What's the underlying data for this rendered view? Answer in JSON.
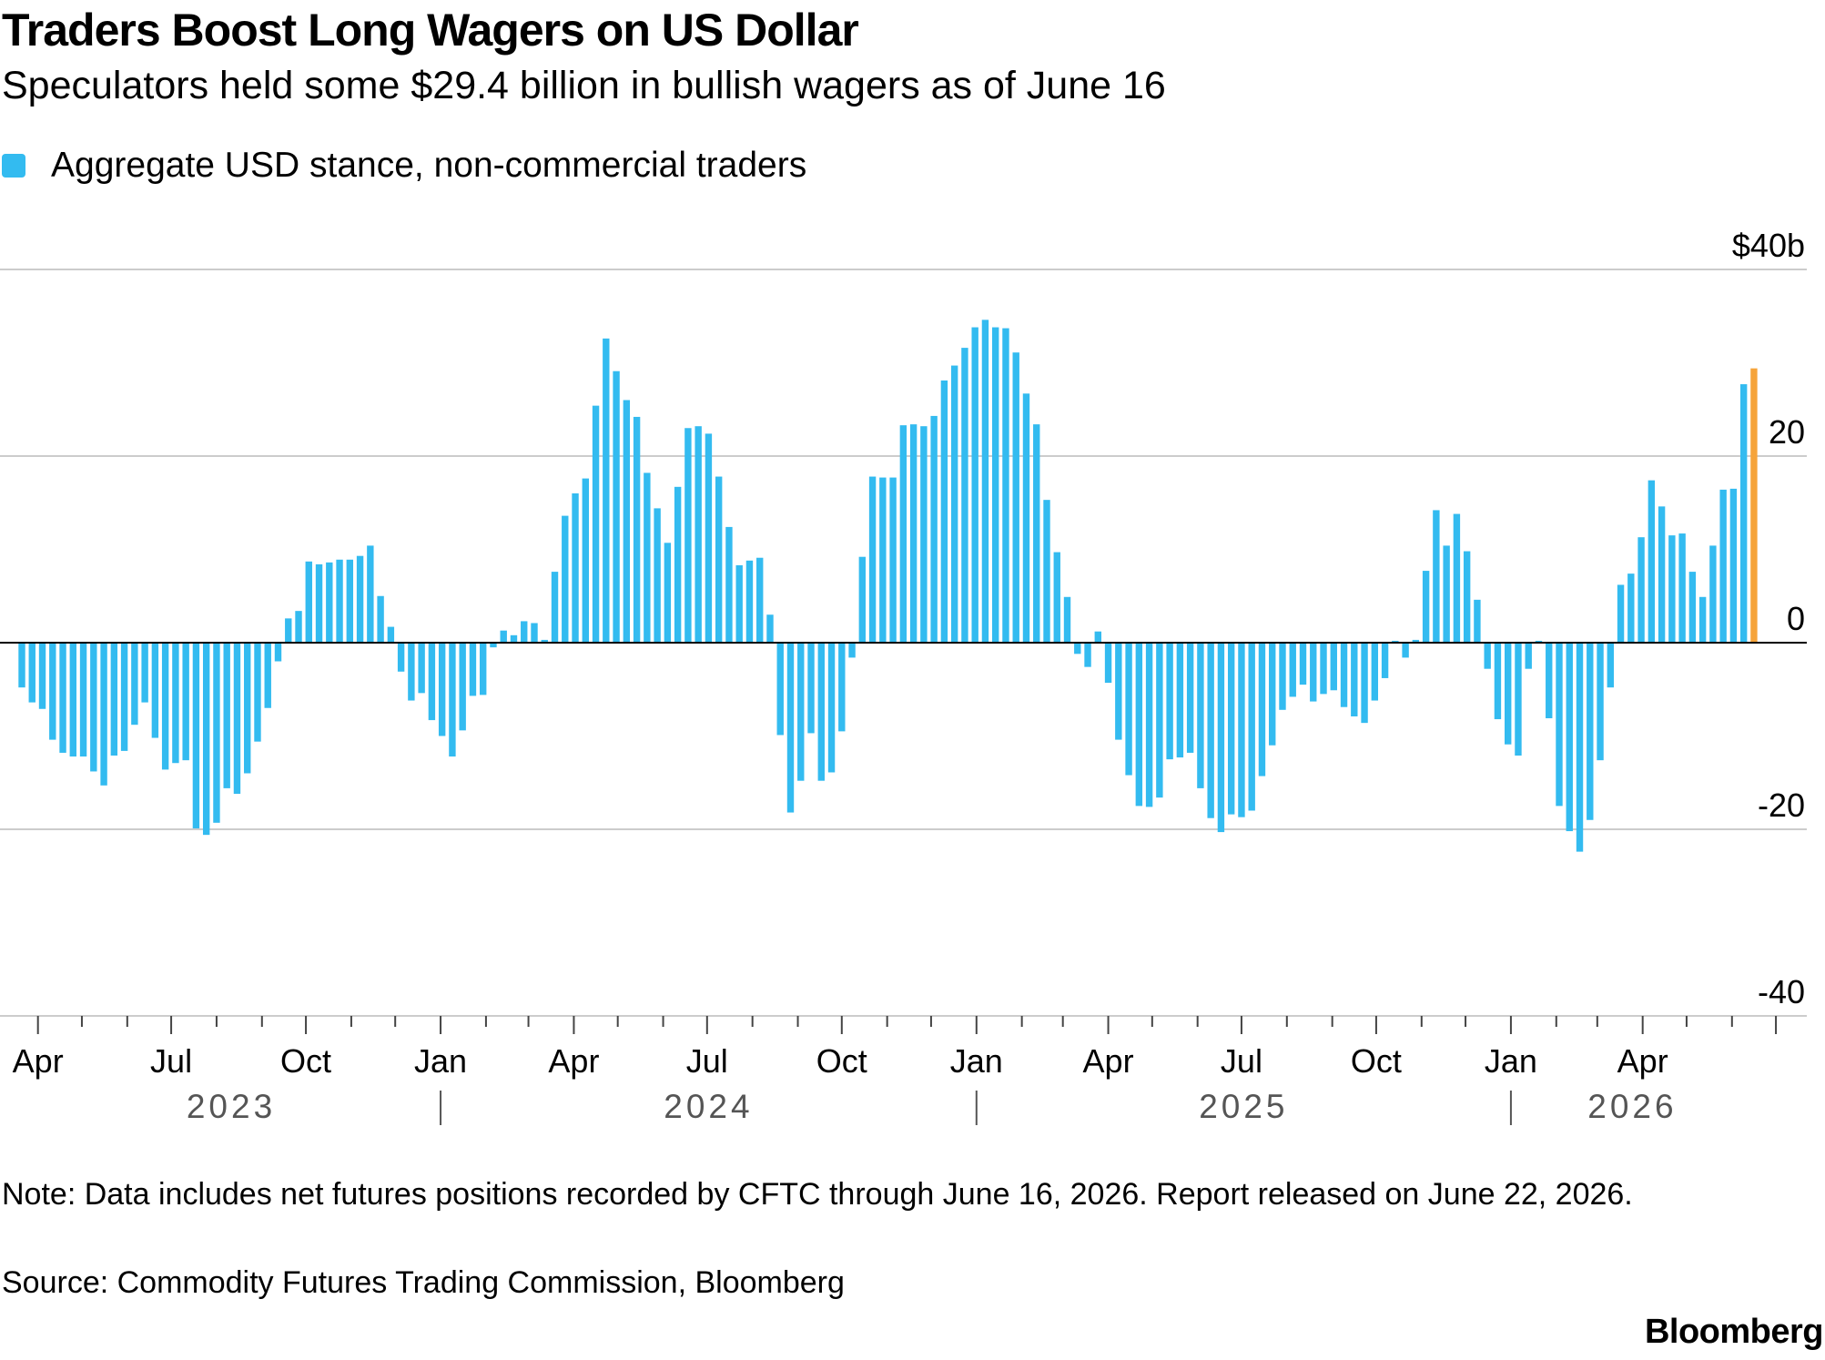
{
  "header": {
    "title": "Traders Boost Long Wagers on US Dollar",
    "subtitle": "Speculators held some $29.4 billion in bullish wagers as of June 16"
  },
  "footer": {
    "note": "Note: Data includes net futures positions recorded by CFTC through June 16, 2026. Report released on June 22, 2026.",
    "source": "Source: Commodity Futures Trading Commission, Bloomberg",
    "brand": "Bloomberg"
  },
  "colors": {
    "bar": "#33bbf0",
    "highlight_bar": "#f6a43a",
    "grid": "#cccccc",
    "zero_line": "#000000"
  },
  "chart_data": {
    "type": "bar",
    "title": "Traders Boost Long Wagers on US Dollar",
    "subtitle": "Speculators held some $29.4 billion in bullish wagers as of June 16",
    "legend": {
      "placement": "top-left",
      "entries": [
        "Aggregate USD stance, non-commercial traders"
      ]
    },
    "series": [
      {
        "name": "Aggregate USD stance, non-commercial traders",
        "frequency": "weekly",
        "start_date": "2023-03-21",
        "end_date": "2026-06-16",
        "values": [
          -4.8,
          -6.4,
          -7.1,
          -10.4,
          -11.8,
          -12.2,
          -12.2,
          -13.8,
          -15.3,
          -12.1,
          -11.6,
          -8.8,
          -6.4,
          -10.2,
          -13.6,
          -12.9,
          -12.6,
          -19.9,
          -20.6,
          -19.3,
          -15.6,
          -16.2,
          -14.0,
          -10.6,
          -7.0,
          -2.0,
          2.6,
          3.4,
          8.7,
          8.4,
          8.6,
          8.9,
          8.9,
          9.3,
          10.4,
          5.0,
          1.7,
          -3.1,
          -6.2,
          -5.4,
          -8.3,
          -10.0,
          -12.2,
          -9.4,
          -5.7,
          -5.6,
          -0.5,
          1.3,
          0.8,
          2.3,
          2.1,
          0.3,
          7.6,
          13.6,
          16.0,
          17.6,
          25.4,
          32.6,
          29.1,
          26.0,
          24.2,
          18.2,
          14.4,
          10.7,
          16.7,
          23.0,
          23.2,
          22.4,
          17.8,
          12.4,
          8.3,
          8.8,
          9.1,
          3.0,
          -9.9,
          -18.2,
          -14.8,
          -9.7,
          -14.8,
          -13.9,
          -9.5,
          -1.6,
          9.2,
          17.8,
          17.7,
          17.7,
          23.3,
          23.4,
          23.2,
          24.3,
          28.1,
          29.7,
          31.6,
          33.8,
          34.6,
          33.8,
          33.7,
          31.1,
          26.7,
          23.4,
          15.3,
          9.7,
          4.9,
          -1.2,
          -2.6,
          1.2,
          -4.3,
          -10.4,
          -14.2,
          -17.5,
          -17.6,
          -16.6,
          -12.5,
          -12.3,
          -11.8,
          -15.6,
          -18.8,
          -20.3,
          -18.4,
          -18.7,
          -18.0,
          -14.3,
          -11.0,
          -7.2,
          -5.8,
          -4.5,
          -6.3,
          -5.5,
          -5.1,
          -6.9,
          -7.9,
          -8.6,
          -6.2,
          -3.8,
          0.2,
          -1.6,
          0.3,
          7.7,
          14.2,
          10.4,
          13.8,
          9.8,
          4.6,
          -2.8,
          -8.2,
          -10.9,
          -12.1,
          -2.8,
          0.2,
          -8.1,
          -17.5,
          -20.2,
          -22.4,
          -19.0,
          -12.6,
          -4.8,
          6.2,
          7.4,
          11.3,
          17.4,
          14.6,
          11.5,
          11.7,
          7.6,
          4.9,
          10.4,
          16.4,
          16.5,
          27.7,
          29.4
        ]
      }
    ],
    "highlight": {
      "date": "2026-06-16",
      "value": 29.4,
      "note": "latest reading, drawn in the highlight color"
    },
    "y_axis": {
      "min": -40,
      "max": 40,
      "ticks": [
        40,
        20,
        0,
        -20,
        -40
      ],
      "tick_labels": [
        "$40b",
        "20",
        "0",
        "-20",
        "-40"
      ],
      "unit": "billion USD",
      "position": "right"
    },
    "x_axis": {
      "month_labels": [
        {
          "date": "2023-04-01",
          "label": "Apr"
        },
        {
          "date": "2023-07-01",
          "label": "Jul"
        },
        {
          "date": "2023-10-01",
          "label": "Oct"
        },
        {
          "date": "2024-01-01",
          "label": "Jan"
        },
        {
          "date": "2024-04-01",
          "label": "Apr"
        },
        {
          "date": "2024-07-01",
          "label": "Jul"
        },
        {
          "date": "2024-10-01",
          "label": "Oct"
        },
        {
          "date": "2025-01-01",
          "label": "Jan"
        },
        {
          "date": "2025-04-01",
          "label": "Apr"
        },
        {
          "date": "2025-07-01",
          "label": "Jul"
        },
        {
          "date": "2025-10-01",
          "label": "Oct"
        },
        {
          "date": "2026-01-01",
          "label": "Jan"
        },
        {
          "date": "2026-04-01",
          "label": "Apr"
        }
      ],
      "year_labels": [
        "2023",
        "2024",
        "2025",
        "2026"
      ],
      "year_separators": [
        "2024-01-01",
        "2025-01-01",
        "2026-01-01"
      ]
    },
    "grid": true
  }
}
